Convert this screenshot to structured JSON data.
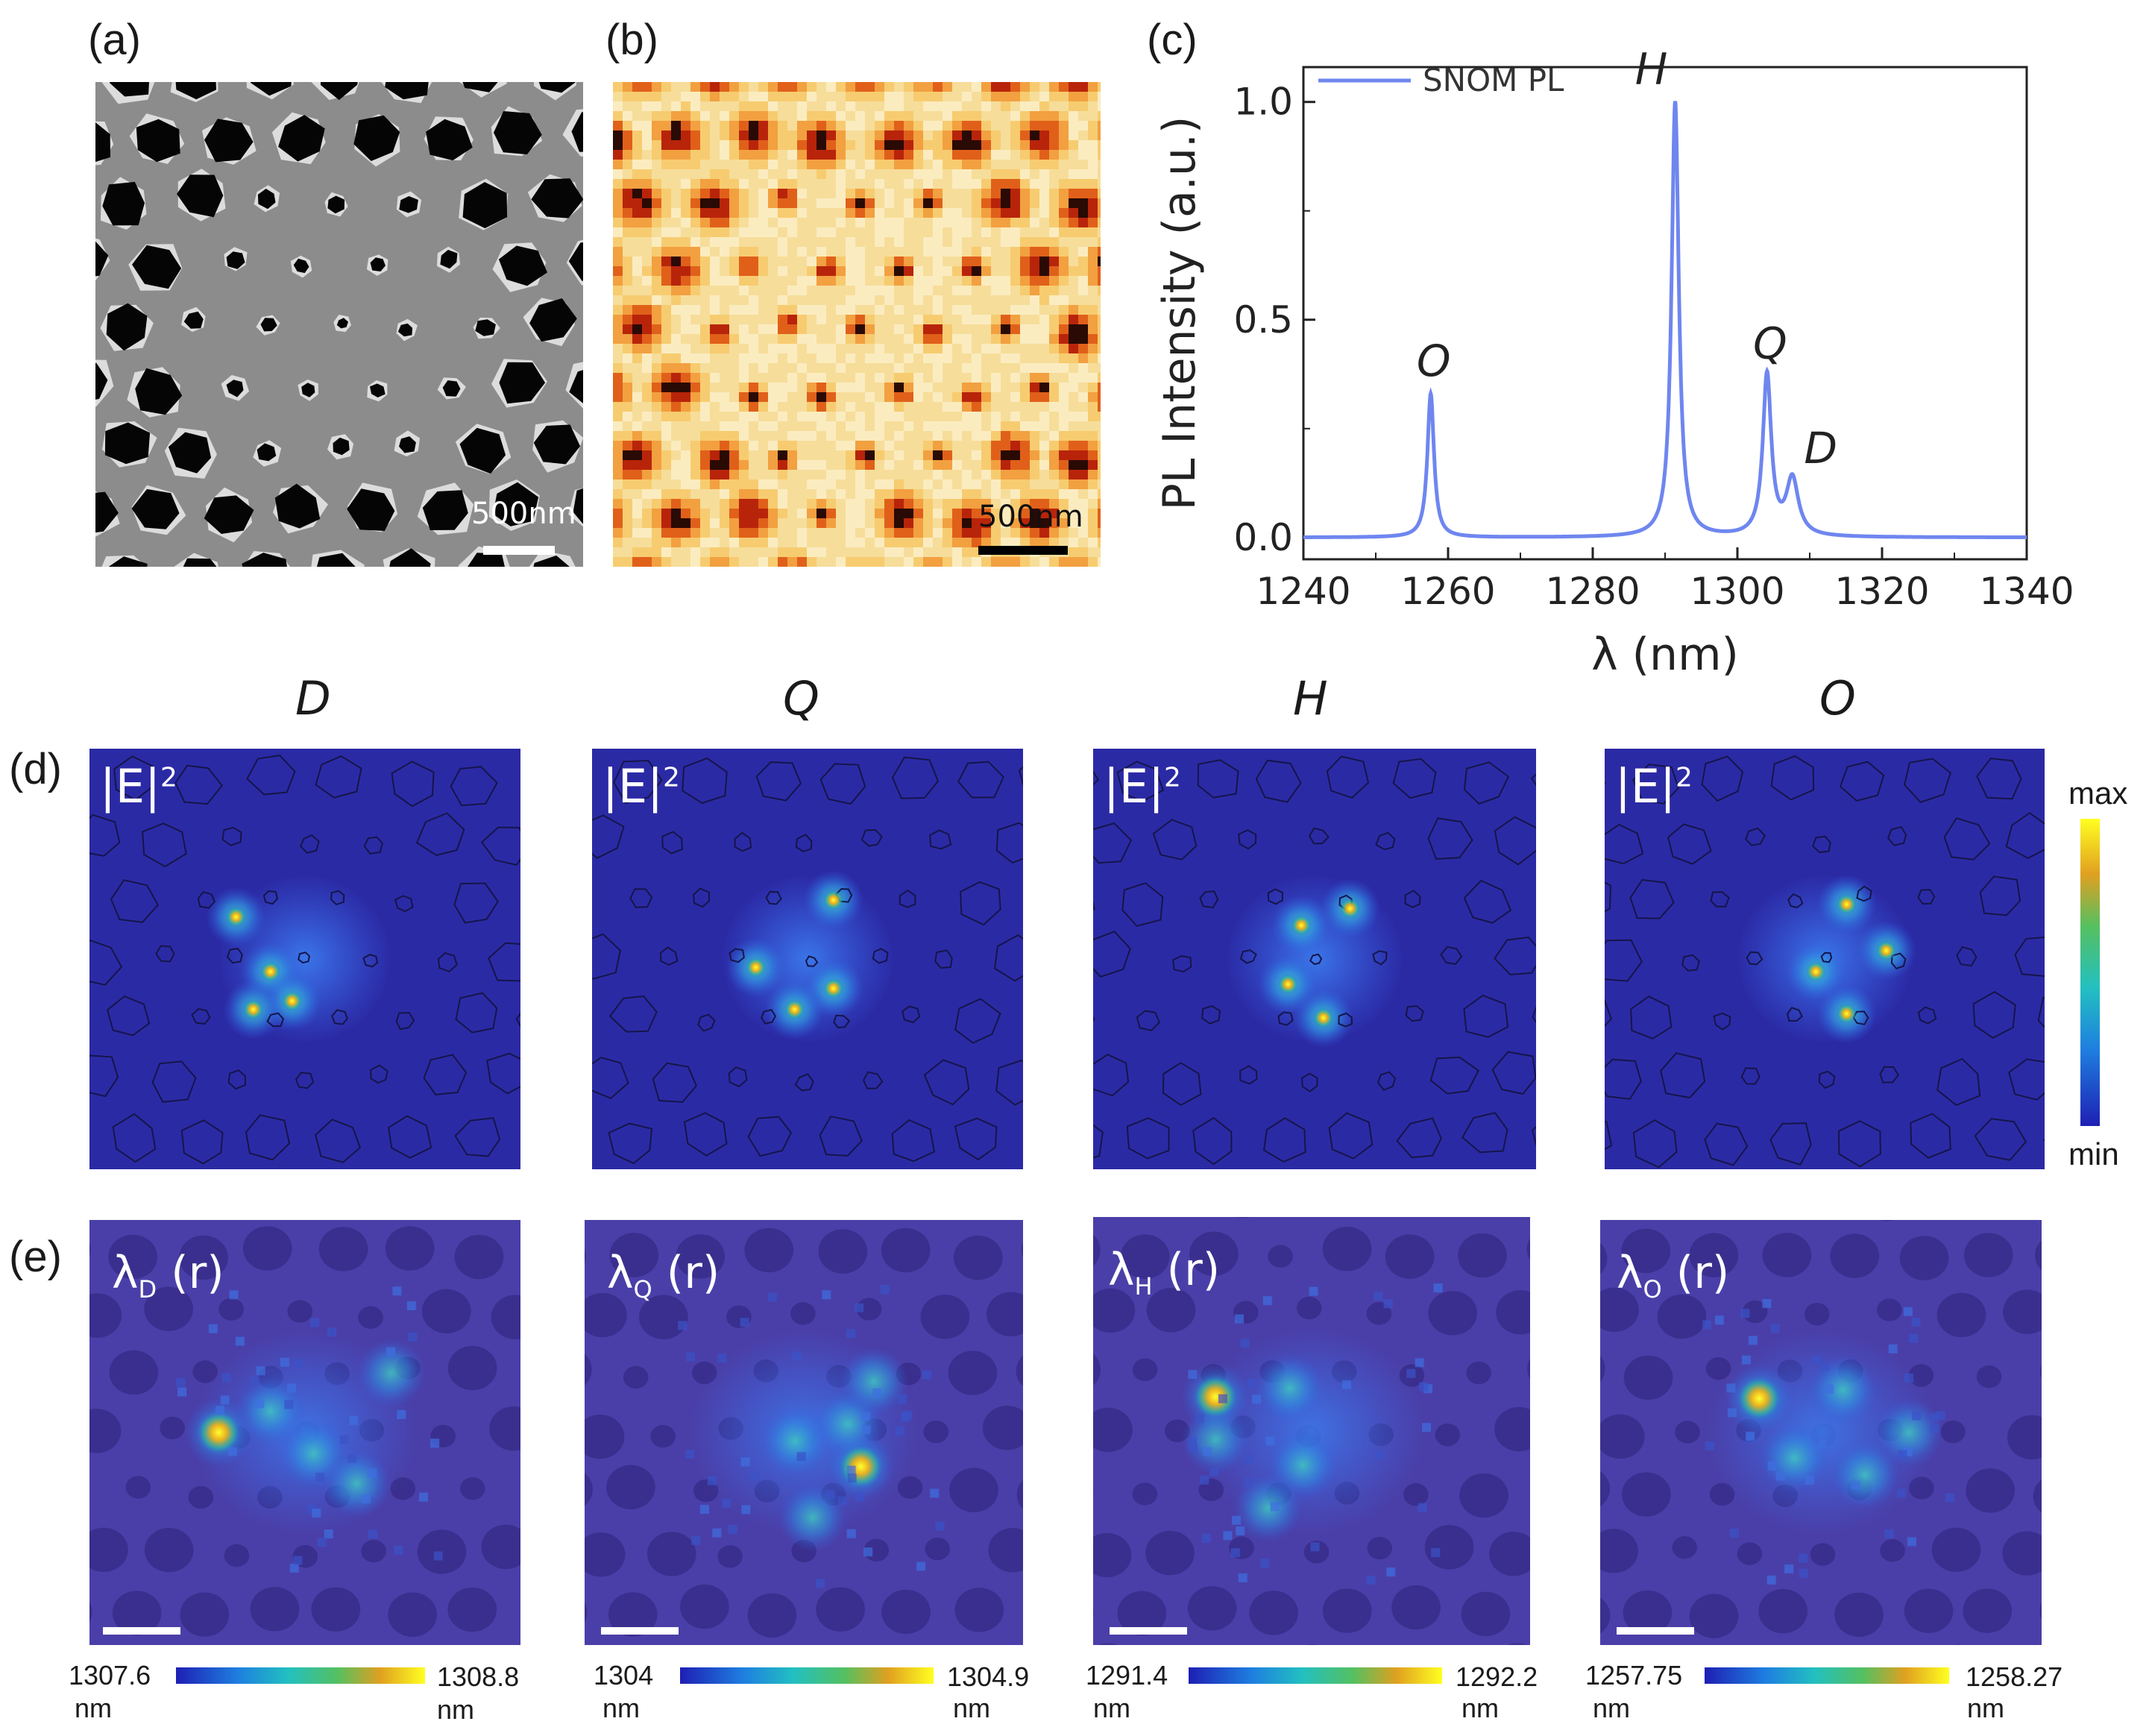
{
  "panel_labels": {
    "a": "(a)",
    "b": "(b)",
    "c": "(c)",
    "d": "(d)",
    "e": "(e)"
  },
  "sem": {
    "scalebar": "500nm"
  },
  "snom": {
    "scalebar": "500nm"
  },
  "colors": {
    "spectrum": "#6f86ef",
    "field_bg": "#2b2aa5",
    "map_bg": "#4a3fa8",
    "hole": "#3a2f8e"
  },
  "chart_data": {
    "type": "line",
    "series": [
      {
        "name": "SNOM PL"
      }
    ],
    "legend": "SNOM PL",
    "xlabel": "λ (nm)",
    "ylabel": "PL Intensity (a.u.)",
    "xlim": [
      1240,
      1340
    ],
    "ylim": [
      -0.05,
      1.08
    ],
    "xticks": [
      "1240",
      "1260",
      "1280",
      "1300",
      "1320",
      "1340"
    ],
    "yticks": [
      "0.0",
      "0.5",
      "1.0"
    ],
    "peaks": [
      {
        "label": "O",
        "center": 1257.6,
        "height": 0.33,
        "width": 0.55
      },
      {
        "label": "H",
        "center": 1291.4,
        "height": 1.0,
        "width": 0.6
      },
      {
        "label": "Q",
        "center": 1304.1,
        "height": 0.37,
        "width": 0.7
      },
      {
        "label": "D",
        "center": 1307.6,
        "height": 0.13,
        "width": 1.0
      }
    ]
  },
  "field_panels": [
    {
      "mode": "D",
      "label": "|E|",
      "sup": "2"
    },
    {
      "mode": "Q",
      "label": "|E|",
      "sup": "2"
    },
    {
      "mode": "H",
      "label": "|E|",
      "sup": "2"
    },
    {
      "mode": "O",
      "label": "|E|",
      "sup": "2"
    }
  ],
  "field_colorbar": {
    "max": "max",
    "min": "min"
  },
  "maps": [
    {
      "lam": "λ",
      "sub": "D",
      "arg": "(r)",
      "cb_min": "1307.6",
      "cb_max": "1308.8",
      "unit": "nm"
    },
    {
      "lam": "λ",
      "sub": "Q",
      "arg": "(r)",
      "cb_min": "1304",
      "cb_max": "1304.9",
      "unit": "nm"
    },
    {
      "lam": "λ",
      "sub": "H",
      "arg": "(r)",
      "cb_min": "1291.4",
      "cb_max": "1292.2",
      "unit": "nm"
    },
    {
      "lam": "λ",
      "sub": "O",
      "arg": "(r)",
      "cb_min": "1257.75",
      "cb_max": "1258.27",
      "unit": "nm"
    }
  ]
}
